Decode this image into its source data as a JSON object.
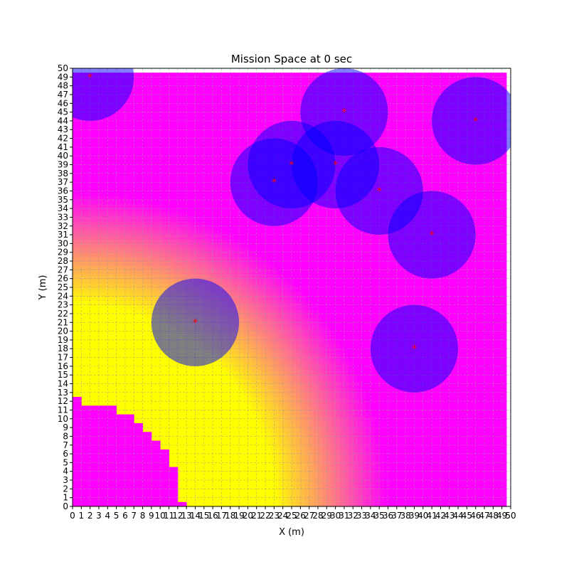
{
  "chart_data": {
    "type": "heatmap",
    "title": "Mission Space at 0 sec",
    "xlabel": "X (m)",
    "ylabel": "Y (m)",
    "xlim": [
      0,
      50
    ],
    "ylim": [
      0,
      50
    ],
    "x_ticks": [
      0,
      1,
      2,
      3,
      4,
      5,
      6,
      7,
      8,
      9,
      10,
      11,
      12,
      13,
      14,
      15,
      16,
      17,
      18,
      19,
      20,
      21,
      22,
      23,
      24,
      25,
      26,
      27,
      28,
      29,
      30,
      31,
      32,
      33,
      34,
      35,
      36,
      37,
      38,
      39,
      40,
      41,
      42,
      43,
      44,
      45,
      46,
      47,
      48,
      49,
      50
    ],
    "y_ticks": [
      0,
      1,
      2,
      3,
      4,
      5,
      6,
      7,
      8,
      9,
      10,
      11,
      12,
      13,
      14,
      15,
      16,
      17,
      18,
      19,
      20,
      21,
      22,
      23,
      24,
      25,
      26,
      27,
      28,
      29,
      30,
      31,
      32,
      33,
      34,
      35,
      36,
      37,
      38,
      39,
      40,
      41,
      42,
      43,
      44,
      45,
      46,
      47,
      48,
      49,
      50
    ],
    "grid": true,
    "background_color": "#ff00ff",
    "heat_color": "#ffff00",
    "heat_field": {
      "center": [
        0,
        0
      ],
      "full_radius": 23,
      "zero_radius": 36,
      "note_cells_data_extent": [
        0,
        49.5
      ]
    },
    "obstacle_cells": {
      "color": "#ff00ff",
      "top_per_column": [
        12.5,
        11.5,
        11.5,
        11.5,
        11.5,
        10.5,
        10.5,
        9.5,
        8.5,
        7.5,
        6.5,
        4.5,
        0.5,
        0
      ]
    },
    "agents": [
      {
        "x": 2,
        "y": 49,
        "r": 5,
        "color": "#0000ff",
        "alpha": 0.5
      },
      {
        "x": 31,
        "y": 45,
        "r": 5,
        "color": "#0000ff",
        "alpha": 0.5
      },
      {
        "x": 46,
        "y": 44,
        "r": 5,
        "color": "#0000ff",
        "alpha": 0.5
      },
      {
        "x": 25,
        "y": 39,
        "r": 5,
        "color": "#0000ff",
        "alpha": 0.5
      },
      {
        "x": 30,
        "y": 39,
        "r": 5,
        "color": "#0000ff",
        "alpha": 0.5
      },
      {
        "x": 23,
        "y": 37,
        "r": 5,
        "color": "#0000ff",
        "alpha": 0.5
      },
      {
        "x": 35,
        "y": 36,
        "r": 5,
        "color": "#0000ff",
        "alpha": 0.5
      },
      {
        "x": 41,
        "y": 31,
        "r": 5,
        "color": "#0000ff",
        "alpha": 0.5
      },
      {
        "x": 39,
        "y": 18,
        "r": 5,
        "color": "#0000ff",
        "alpha": 0.5
      },
      {
        "x": 14,
        "y": 21,
        "r": 5,
        "color": "#0000ff",
        "alpha": 0.5
      }
    ],
    "agent_marker": {
      "symbol": "*",
      "color": "#ff0000"
    }
  }
}
